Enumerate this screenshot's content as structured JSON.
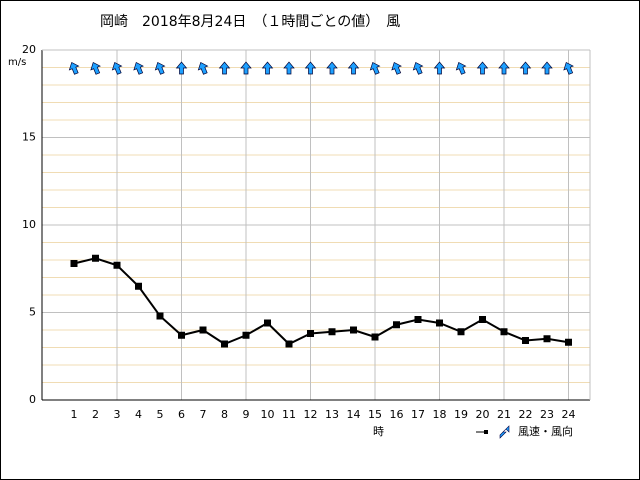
{
  "chart_data": {
    "type": "line",
    "title": "岡崎　2018年8月24日　（１時間ごとの値）　風",
    "y_label": "m/s",
    "x_label": "時",
    "legend_label": "風速・風向",
    "categories": [
      "1",
      "2",
      "3",
      "4",
      "5",
      "6",
      "7",
      "8",
      "9",
      "10",
      "11",
      "12",
      "13",
      "14",
      "15",
      "16",
      "17",
      "18",
      "19",
      "20",
      "21",
      "22",
      "23",
      "24"
    ],
    "series": [
      {
        "name": "風速",
        "color": "#000000",
        "values": [
          7.8,
          8.1,
          7.7,
          6.5,
          4.8,
          3.7,
          4.0,
          3.2,
          3.7,
          4.4,
          3.2,
          3.8,
          3.9,
          4.0,
          3.6,
          4.3,
          4.6,
          4.4,
          3.9,
          4.6,
          3.9,
          3.4,
          3.5,
          3.3
        ]
      }
    ],
    "wind_arrow_deg": [
      -22.5,
      -22.5,
      -22.5,
      -22.5,
      -22.5,
      0,
      -22.5,
      0,
      0,
      0,
      0,
      0,
      0,
      0,
      -22.5,
      -22.5,
      -22.5,
      0,
      -22.5,
      0,
      0,
      0,
      0,
      -22.5
    ],
    "arrow_color": "#1ea0ff",
    "ylim": [
      0,
      20
    ],
    "yticks": [
      0,
      5,
      10,
      15,
      20
    ],
    "grid": true,
    "minor_grid": true
  }
}
